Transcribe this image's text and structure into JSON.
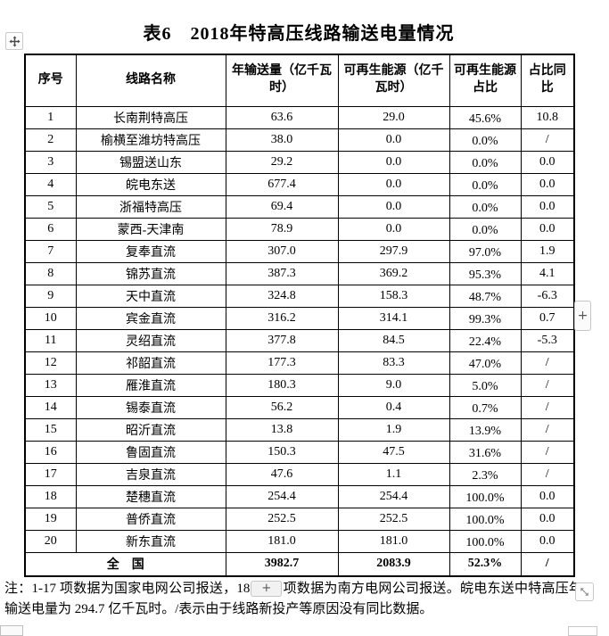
{
  "title": "表6　2018年特高压线路输送电量情况",
  "table": {
    "headers": [
      "序号",
      "线路名称",
      "年输送量（亿千瓦时）",
      "可再生能源（亿千瓦时）",
      "可再生能源占比",
      "占比同比"
    ],
    "col_keys": [
      "index",
      "line-name",
      "annual-transmission",
      "renewable-energy",
      "renewable-share",
      "share-yoy"
    ],
    "rows": [
      [
        "1",
        "长南荆特高压",
        "63.6",
        "29.0",
        "45.6%",
        "10.8"
      ],
      [
        "2",
        "榆横至潍坊特高压",
        "38.0",
        "0.0",
        "0.0%",
        "/"
      ],
      [
        "3",
        "锡盟送山东",
        "29.2",
        "0.0",
        "0.0%",
        "0.0"
      ],
      [
        "4",
        "皖电东送",
        "677.4",
        "0.0",
        "0.0%",
        "0.0"
      ],
      [
        "5",
        "浙福特高压",
        "69.4",
        "0.0",
        "0.0%",
        "0.0"
      ],
      [
        "6",
        "蒙西-天津南",
        "78.9",
        "0.0",
        "0.0%",
        "0.0"
      ],
      [
        "7",
        "复奉直流",
        "307.0",
        "297.9",
        "97.0%",
        "1.9"
      ],
      [
        "8",
        "锦苏直流",
        "387.3",
        "369.2",
        "95.3%",
        "4.1"
      ],
      [
        "9",
        "天中直流",
        "324.8",
        "158.3",
        "48.7%",
        "-6.3"
      ],
      [
        "10",
        "宾金直流",
        "316.2",
        "314.1",
        "99.3%",
        "0.7"
      ],
      [
        "11",
        "灵绍直流",
        "377.8",
        "84.5",
        "22.4%",
        "-5.3"
      ],
      [
        "12",
        "祁韶直流",
        "177.3",
        "83.3",
        "47.0%",
        "/"
      ],
      [
        "13",
        "雁淮直流",
        "180.3",
        "9.0",
        "5.0%",
        "/"
      ],
      [
        "14",
        "锡泰直流",
        "56.2",
        "0.4",
        "0.7%",
        "/"
      ],
      [
        "15",
        "昭沂直流",
        "13.8",
        "1.9",
        "13.9%",
        "/"
      ],
      [
        "16",
        "鲁固直流",
        "150.3",
        "47.5",
        "31.6%",
        "/"
      ],
      [
        "17",
        "吉泉直流",
        "47.6",
        "1.1",
        "2.3%",
        "/"
      ],
      [
        "18",
        "楚穗直流",
        "254.4",
        "254.4",
        "100.0%",
        "0.0"
      ],
      [
        "19",
        "普侨直流",
        "252.5",
        "252.5",
        "100.0%",
        "0.0"
      ],
      [
        "20",
        "新东直流",
        "181.0",
        "181.0",
        "100.0%",
        "0.0"
      ]
    ],
    "total": {
      "label": "全　国",
      "values": [
        "3982.7",
        "2083.9",
        "52.3%",
        "/"
      ]
    }
  },
  "note": {
    "prefix": "注：1-17 项数据为国家电网公司报送，18",
    "plus_label": "+",
    "suffix": "项数据为南方电网公司报送。皖电东送中特高压年输送电量为 294.7 亿千瓦时。/表示由于线路新投产等原因没有同比数据。"
  },
  "handles": {
    "insert_plus": "+"
  }
}
